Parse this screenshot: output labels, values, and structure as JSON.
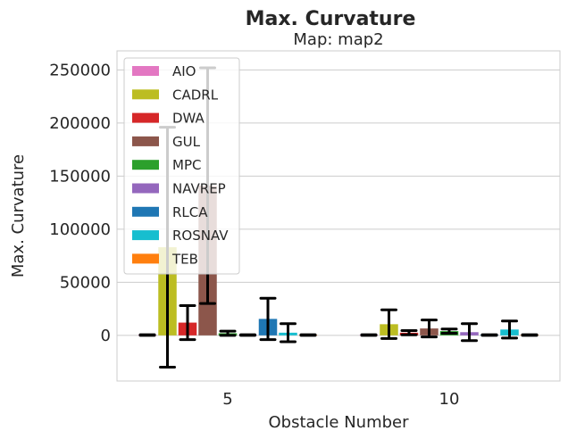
{
  "chart_data": {
    "type": "bar",
    "title": "Max. Curvature",
    "subtitle": "Map: map2",
    "xlabel": "Obstacle Number",
    "ylabel": "Max. Curvature",
    "categories": [
      "5",
      "10"
    ],
    "ylim": [
      -43000,
      268000
    ],
    "yticks": [
      0,
      50000,
      100000,
      150000,
      200000,
      250000
    ],
    "grid": true,
    "legend_position": "top-left",
    "series": [
      {
        "name": "AIO",
        "color": "#e377c2",
        "values": [
          300,
          300
        ],
        "err": [
          300,
          300
        ]
      },
      {
        "name": "CADRL",
        "color": "#bcbd22",
        "values": [
          83000,
          10500
        ],
        "err": [
          113000,
          13500
        ]
      },
      {
        "name": "DWA",
        "color": "#d62728",
        "values": [
          12000,
          2500
        ],
        "err": [
          16000,
          2000
        ]
      },
      {
        "name": "GUL",
        "color": "#8c564b",
        "values": [
          141000,
          6500
        ],
        "err": [
          111000,
          8000
        ]
      },
      {
        "name": "MPC",
        "color": "#2ca02c",
        "values": [
          2000,
          4000
        ],
        "err": [
          2000,
          2000
        ]
      },
      {
        "name": "NAVREP",
        "color": "#9467bd",
        "values": [
          300,
          3000
        ],
        "err": [
          300,
          8000
        ]
      },
      {
        "name": "RLCA",
        "color": "#1f77b4",
        "values": [
          15500,
          300
        ],
        "err": [
          19500,
          300
        ]
      },
      {
        "name": "ROSNAV",
        "color": "#17becf",
        "values": [
          2500,
          5500
        ],
        "err": [
          8500,
          8000
        ]
      },
      {
        "name": "TEB",
        "color": "#ff7f0e",
        "values": [
          300,
          300
        ],
        "err": [
          300,
          300
        ]
      }
    ]
  }
}
